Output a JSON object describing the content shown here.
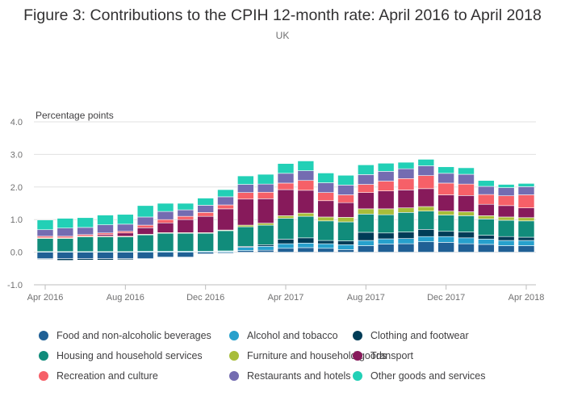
{
  "chart_data": {
    "type": "bar",
    "stacked": true,
    "title": "Figure 3: Contributions to the CPIH 12-month rate: April 2016 to April 2018",
    "subtitle": "UK",
    "ylabel": "Percentage points",
    "ylim": [
      -1.0,
      4.0
    ],
    "yticks": [
      "4.0",
      "3.0",
      "2.0",
      "1.0",
      "0.0",
      "-1.0"
    ],
    "grid": true,
    "legend_position": "bottom",
    "categories": [
      "Apr 2016",
      "May 2016",
      "Jun 2016",
      "Jul 2016",
      "Aug 2016",
      "Sep 2016",
      "Oct 2016",
      "Nov 2016",
      "Dec 2016",
      "Jan 2017",
      "Feb 2017",
      "Mar 2017",
      "Apr 2017",
      "May 2017",
      "Jun 2017",
      "Jul 2017",
      "Aug 2017",
      "Sep 2017",
      "Oct 2017",
      "Nov 2017",
      "Dec 2017",
      "Jan 2018",
      "Feb 2018",
      "Mar 2018",
      "Apr 2018"
    ],
    "xtick_labels": [
      "Apr 2016",
      "Aug 2016",
      "Dec 2016",
      "Apr 2017",
      "Aug 2017",
      "Dec 2017",
      "Apr 2018"
    ],
    "xtick_indices": [
      0,
      4,
      8,
      12,
      16,
      20,
      24
    ],
    "series": [
      {
        "name": "Food and non-alcoholic beverages",
        "color": "#206095",
        "values": [
          -0.2,
          -0.2,
          -0.2,
          -0.2,
          -0.2,
          -0.2,
          -0.15,
          -0.15,
          -0.05,
          -0.03,
          0.05,
          0.06,
          0.12,
          0.14,
          0.12,
          0.08,
          0.2,
          0.25,
          0.26,
          0.32,
          0.3,
          0.26,
          0.24,
          0.2,
          0.2
        ]
      },
      {
        "name": "Alcohol and tobacco",
        "color": "#27a0cc",
        "values": [
          0.02,
          0.02,
          0.02,
          0.02,
          0.02,
          0.03,
          0.03,
          0.03,
          0.03,
          0.03,
          0.1,
          0.12,
          0.14,
          0.14,
          0.14,
          0.15,
          0.16,
          0.16,
          0.16,
          0.16,
          0.18,
          0.18,
          0.16,
          0.16,
          0.16
        ]
      },
      {
        "name": "Clothing and footwear",
        "color": "#003c57",
        "values": [
          -0.02,
          -0.05,
          -0.04,
          -0.04,
          -0.03,
          -0.01,
          0.0,
          0.0,
          0.0,
          0.01,
          0.03,
          0.05,
          0.14,
          0.16,
          0.1,
          0.12,
          0.25,
          0.18,
          0.2,
          0.22,
          0.16,
          0.18,
          0.12,
          0.12,
          0.1
        ]
      },
      {
        "name": "Housing and household services",
        "color": "#118c7b",
        "values": [
          0.4,
          0.4,
          0.45,
          0.45,
          0.45,
          0.5,
          0.55,
          0.55,
          0.55,
          0.62,
          0.6,
          0.6,
          0.64,
          0.66,
          0.6,
          0.58,
          0.56,
          0.56,
          0.6,
          0.56,
          0.5,
          0.5,
          0.5,
          0.5,
          0.5
        ]
      },
      {
        "name": "Furniture and household goods",
        "color": "#a8bd3a",
        "values": [
          0.02,
          0.02,
          0.02,
          0.02,
          0.02,
          0.02,
          0.02,
          0.02,
          0.02,
          0.02,
          0.05,
          0.06,
          0.08,
          0.1,
          0.12,
          0.14,
          0.16,
          0.18,
          0.14,
          0.14,
          0.12,
          0.12,
          0.1,
          0.1,
          0.1
        ]
      },
      {
        "name": "Transport",
        "color": "#871a5b",
        "values": [
          0.0,
          0.0,
          0.0,
          0.05,
          0.1,
          0.2,
          0.3,
          0.4,
          0.5,
          0.65,
          0.8,
          0.75,
          0.8,
          0.7,
          0.5,
          0.45,
          0.5,
          0.55,
          0.55,
          0.55,
          0.5,
          0.5,
          0.35,
          0.35,
          0.3
        ]
      },
      {
        "name": "Recreation and culture",
        "color": "#f66068",
        "values": [
          0.05,
          0.05,
          0.05,
          0.05,
          0.05,
          0.08,
          0.1,
          0.1,
          0.12,
          0.12,
          0.2,
          0.2,
          0.2,
          0.3,
          0.25,
          0.24,
          0.25,
          0.3,
          0.35,
          0.4,
          0.36,
          0.35,
          0.3,
          0.3,
          0.4
        ]
      },
      {
        "name": "Restaurants and hotels",
        "color": "#746cb1",
        "values": [
          0.2,
          0.25,
          0.22,
          0.25,
          0.22,
          0.25,
          0.25,
          0.2,
          0.22,
          0.25,
          0.25,
          0.25,
          0.3,
          0.3,
          0.3,
          0.3,
          0.3,
          0.3,
          0.3,
          0.3,
          0.3,
          0.3,
          0.25,
          0.25,
          0.25
        ]
      },
      {
        "name": "Other goods and services",
        "color": "#22d0b6",
        "values": [
          0.3,
          0.3,
          0.3,
          0.3,
          0.3,
          0.35,
          0.25,
          0.2,
          0.22,
          0.22,
          0.26,
          0.3,
          0.3,
          0.3,
          0.3,
          0.3,
          0.3,
          0.25,
          0.2,
          0.2,
          0.2,
          0.2,
          0.18,
          0.1,
          0.1
        ]
      }
    ]
  }
}
